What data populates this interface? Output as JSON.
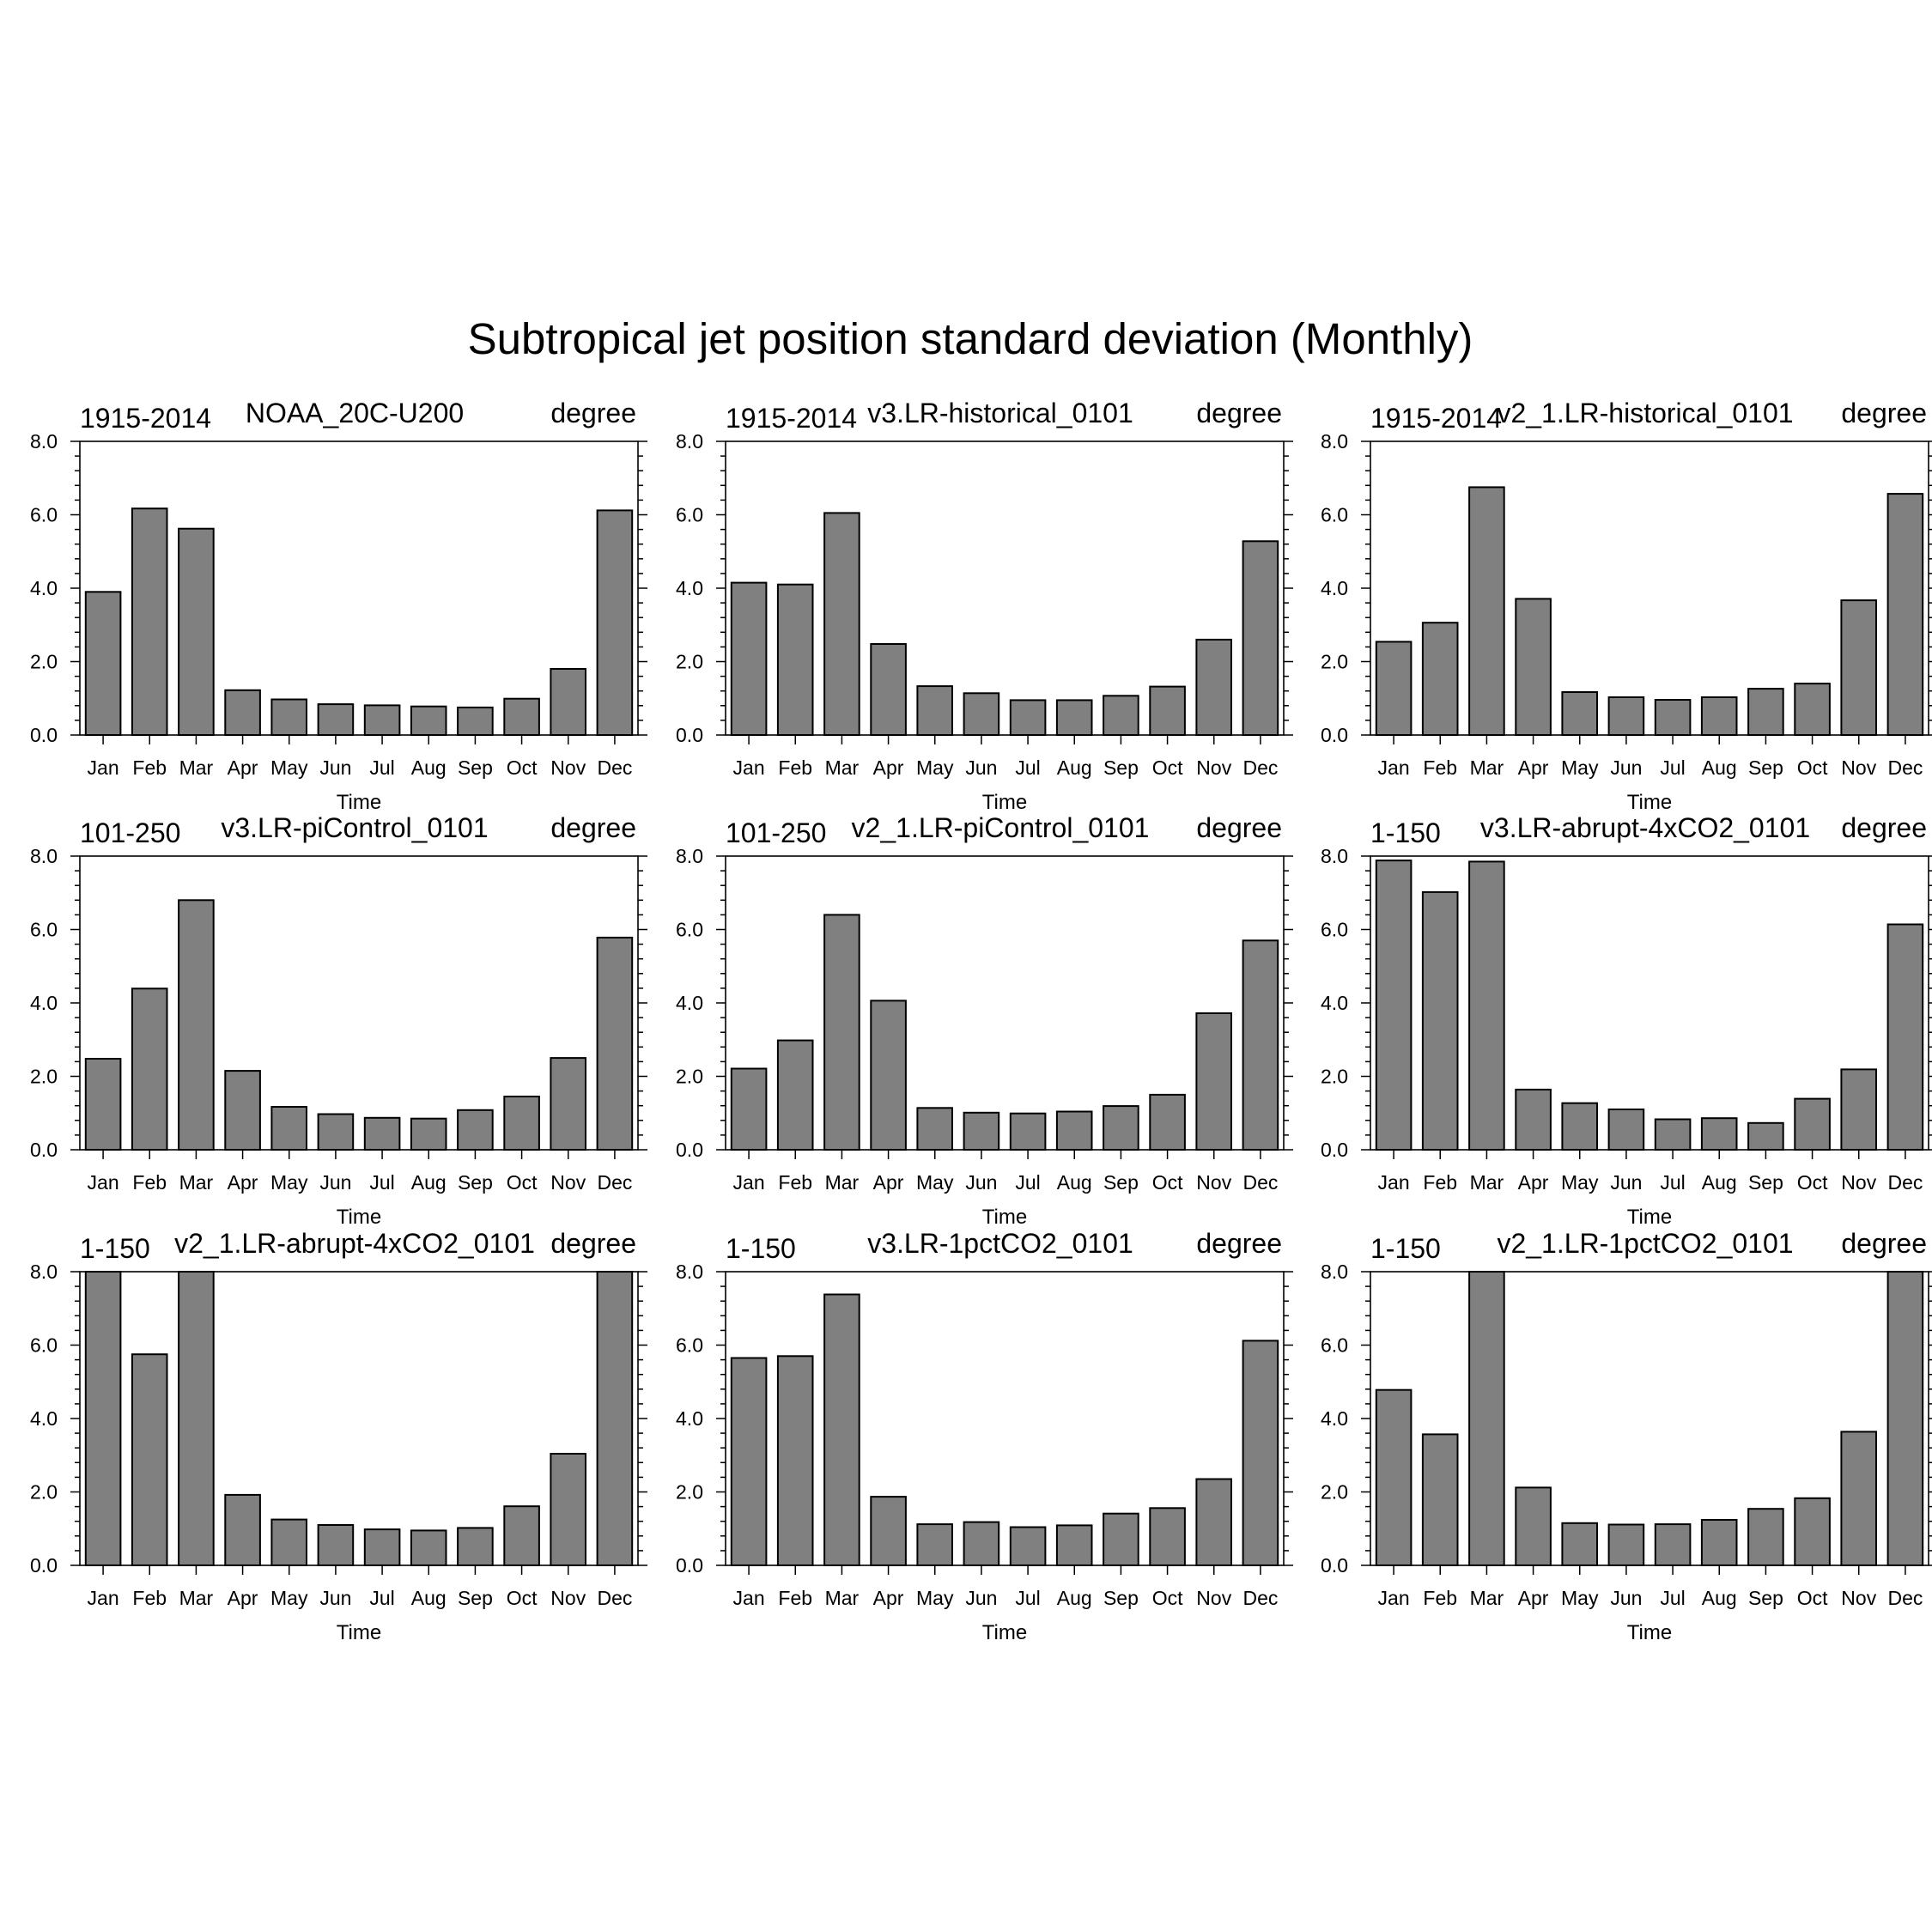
{
  "figure": {
    "title": "Subtropical jet position standard deviation (Monthly)",
    "bar_color": "#808080",
    "bar_edge_color": "#000000"
  },
  "chart_data": [
    {
      "type": "bar",
      "left_label": "1915-2014",
      "center_label": "NOAA_20C-U200",
      "right_label": "degree",
      "xlabel": "Time",
      "categories": [
        "Jan",
        "Feb",
        "Mar",
        "Apr",
        "May",
        "Jun",
        "Jul",
        "Aug",
        "Sep",
        "Oct",
        "Nov",
        "Dec"
      ],
      "values": [
        3.9,
        6.17,
        5.62,
        1.22,
        0.97,
        0.84,
        0.81,
        0.78,
        0.75,
        0.99,
        1.8,
        6.12
      ],
      "ylim": [
        0,
        8
      ],
      "yticks": [
        "0.0",
        "2.0",
        "4.0",
        "6.0",
        "8.0"
      ]
    },
    {
      "type": "bar",
      "left_label": "1915-2014",
      "center_label": "v3.LR-historical_0101",
      "right_label": "degree",
      "xlabel": "Time",
      "categories": [
        "Jan",
        "Feb",
        "Mar",
        "Apr",
        "May",
        "Jun",
        "Jul",
        "Aug",
        "Sep",
        "Oct",
        "Nov",
        "Dec"
      ],
      "values": [
        4.15,
        4.1,
        6.05,
        2.48,
        1.33,
        1.14,
        0.95,
        0.95,
        1.07,
        1.32,
        2.6,
        5.28
      ],
      "ylim": [
        0,
        8
      ],
      "yticks": [
        "0.0",
        "2.0",
        "4.0",
        "6.0",
        "8.0"
      ]
    },
    {
      "type": "bar",
      "left_label": "1915-2014",
      "center_label": "v2_1.LR-historical_0101",
      "right_label": "degree",
      "xlabel": "Time",
      "categories": [
        "Jan",
        "Feb",
        "Mar",
        "Apr",
        "May",
        "Jun",
        "Jul",
        "Aug",
        "Sep",
        "Oct",
        "Nov",
        "Dec"
      ],
      "values": [
        2.54,
        3.06,
        6.75,
        3.71,
        1.17,
        1.03,
        0.96,
        1.03,
        1.26,
        1.4,
        3.67,
        6.57
      ],
      "ylim": [
        0,
        8
      ],
      "yticks": [
        "0.0",
        "2.0",
        "4.0",
        "6.0",
        "8.0"
      ]
    },
    {
      "type": "bar",
      "left_label": "101-250",
      "center_label": "v3.LR-piControl_0101",
      "right_label": "degree",
      "xlabel": "Time",
      "categories": [
        "Jan",
        "Feb",
        "Mar",
        "Apr",
        "May",
        "Jun",
        "Jul",
        "Aug",
        "Sep",
        "Oct",
        "Nov",
        "Dec"
      ],
      "values": [
        2.48,
        4.39,
        6.8,
        2.15,
        1.17,
        0.97,
        0.87,
        0.85,
        1.08,
        1.45,
        2.5,
        5.78
      ],
      "ylim": [
        0,
        8
      ],
      "yticks": [
        "0.0",
        "2.0",
        "4.0",
        "6.0",
        "8.0"
      ]
    },
    {
      "type": "bar",
      "left_label": "101-250",
      "center_label": "v2_1.LR-piControl_0101",
      "right_label": "degree",
      "xlabel": "Time",
      "categories": [
        "Jan",
        "Feb",
        "Mar",
        "Apr",
        "May",
        "Jun",
        "Jul",
        "Aug",
        "Sep",
        "Oct",
        "Nov",
        "Dec"
      ],
      "values": [
        2.21,
        2.98,
        6.4,
        4.06,
        1.14,
        1.01,
        0.99,
        1.04,
        1.19,
        1.5,
        3.72,
        5.7
      ],
      "ylim": [
        0,
        8
      ],
      "yticks": [
        "0.0",
        "2.0",
        "4.0",
        "6.0",
        "8.0"
      ]
    },
    {
      "type": "bar",
      "left_label": "1-150",
      "center_label": "v3.LR-abrupt-4xCO2_0101",
      "right_label": "degree",
      "xlabel": "Time",
      "categories": [
        "Jan",
        "Feb",
        "Mar",
        "Apr",
        "May",
        "Jun",
        "Jul",
        "Aug",
        "Sep",
        "Oct",
        "Nov",
        "Dec"
      ],
      "values": [
        7.88,
        7.02,
        7.85,
        1.64,
        1.27,
        1.1,
        0.83,
        0.86,
        0.73,
        1.39,
        2.19,
        6.14
      ],
      "ylim": [
        0,
        8
      ],
      "yticks": [
        "0.0",
        "2.0",
        "4.0",
        "6.0",
        "8.0"
      ]
    },
    {
      "type": "bar",
      "left_label": "1-150",
      "center_label": "v2_1.LR-abrupt-4xCO2_0101",
      "right_label": "degree",
      "xlabel": "Time",
      "categories": [
        "Jan",
        "Feb",
        "Mar",
        "Apr",
        "May",
        "Jun",
        "Jul",
        "Aug",
        "Sep",
        "Oct",
        "Nov",
        "Dec"
      ],
      "values": [
        8.0,
        5.75,
        8.0,
        1.92,
        1.25,
        1.1,
        0.98,
        0.95,
        1.02,
        1.61,
        3.04,
        8.0
      ],
      "ylim": [
        0,
        8
      ],
      "yticks": [
        "0.0",
        "2.0",
        "4.0",
        "6.0",
        "8.0"
      ]
    },
    {
      "type": "bar",
      "left_label": "1-150",
      "center_label": "v3.LR-1pctCO2_0101",
      "right_label": "degree",
      "xlabel": "Time",
      "categories": [
        "Jan",
        "Feb",
        "Mar",
        "Apr",
        "May",
        "Jun",
        "Jul",
        "Aug",
        "Sep",
        "Oct",
        "Nov",
        "Dec"
      ],
      "values": [
        5.65,
        5.7,
        7.38,
        1.87,
        1.12,
        1.18,
        1.04,
        1.09,
        1.41,
        1.56,
        2.35,
        6.12
      ],
      "ylim": [
        0,
        8
      ],
      "yticks": [
        "0.0",
        "2.0",
        "4.0",
        "6.0",
        "8.0"
      ]
    },
    {
      "type": "bar",
      "left_label": "1-150",
      "center_label": "v2_1.LR-1pctCO2_0101",
      "right_label": "degree",
      "xlabel": "Time",
      "categories": [
        "Jan",
        "Feb",
        "Mar",
        "Apr",
        "May",
        "Jun",
        "Jul",
        "Aug",
        "Sep",
        "Oct",
        "Nov",
        "Dec"
      ],
      "values": [
        4.78,
        3.57,
        8.0,
        2.12,
        1.15,
        1.11,
        1.12,
        1.24,
        1.54,
        1.83,
        3.64,
        8.0
      ],
      "ylim": [
        0,
        8
      ],
      "yticks": [
        "0.0",
        "2.0",
        "4.0",
        "6.0",
        "8.0"
      ]
    }
  ]
}
